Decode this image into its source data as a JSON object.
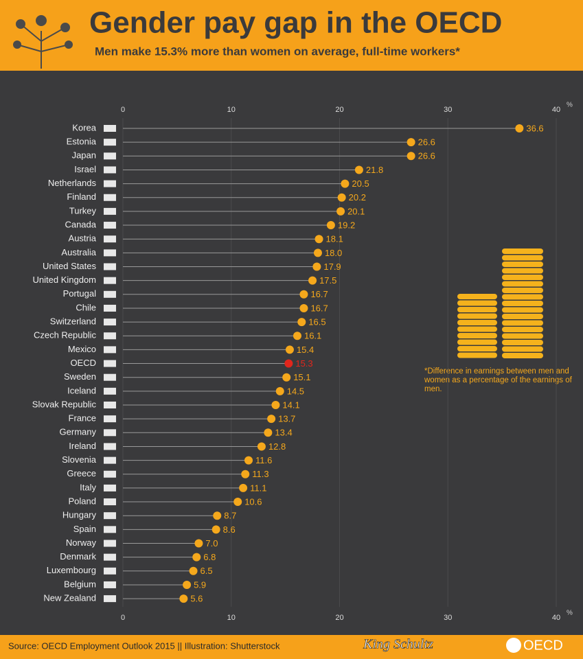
{
  "chart_data": {
    "type": "lollipop",
    "title": "Gender pay gap in the OECD",
    "subtitle": "Men make 15.3% more than women on average, full-time workers*",
    "note": "*Difference in earnings between men and women as a percentage of the earnings of men.",
    "source": "Source: OECD Employment Outlook 2015 || Illustration: Shutterstock",
    "watermark": "King Schultz",
    "logo": "OECD",
    "x_unit": "%",
    "categories": [
      "Korea",
      "Estonia",
      "Japan",
      "Israel",
      "Netherlands",
      "Finland",
      "Turkey",
      "Canada",
      "Austria",
      "Australia",
      "United States",
      "United Kingdom",
      "Portugal",
      "Chile",
      "Switzerland",
      "Czech Republic",
      "Mexico",
      "OECD",
      "Sweden",
      "Iceland",
      "Slovak Republic",
      "France",
      "Germany",
      "Ireland",
      "Slovenia",
      "Greece",
      "Italy",
      "Poland",
      "Hungary",
      "Spain",
      "Norway",
      "Denmark",
      "Luxembourg",
      "Belgium",
      "New Zealand"
    ],
    "values": [
      36.6,
      26.6,
      26.6,
      21.8,
      20.5,
      20.2,
      20.1,
      19.2,
      18.1,
      18.0,
      17.9,
      17.5,
      16.7,
      16.7,
      16.5,
      16.1,
      15.4,
      15.3,
      15.1,
      14.5,
      14.1,
      13.7,
      13.4,
      12.8,
      11.6,
      11.3,
      11.1,
      10.6,
      8.7,
      8.6,
      7.0,
      6.8,
      6.5,
      5.9,
      5.6
    ],
    "value_labels": [
      "36.6",
      "26.6",
      "26.6",
      "21.8",
      "20.5",
      "20.2",
      "20.1",
      "19.2",
      "18.1",
      "18.0",
      "17.9",
      "17.5",
      "16.7",
      "16.7",
      "16.5",
      "16.1",
      "15.4",
      "15.3",
      "15.1",
      "14.5",
      "14.1",
      "13.7",
      "13.4",
      "12.8",
      "11.6",
      "11.3",
      "11.1",
      "10.6",
      "8.7",
      "8.6",
      "7.0",
      "6.8",
      "6.5",
      "5.9",
      "5.6"
    ],
    "color": "#f5a81c",
    "highlight": "OECD",
    "highlight_color": "#e2261c",
    "xlim": [
      0,
      40
    ],
    "xticks": [
      0,
      10,
      20,
      30,
      40
    ],
    "grid": true
  }
}
